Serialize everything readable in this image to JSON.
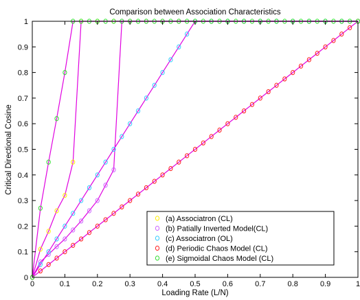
{
  "chart_data": {
    "type": "line",
    "title": "Comparison between Association Characteristics",
    "xlabel": "Loading Rate (L/N)",
    "ylabel": "Critical Directional Cosine",
    "xlim": [
      0,
      1
    ],
    "ylim": [
      0,
      1
    ],
    "x_ticks": [
      "0",
      "0.1",
      "0.2",
      "0.3",
      "0.4",
      "0.5",
      "0.6",
      "0.7",
      "0.8",
      "0.9",
      "1"
    ],
    "y_ticks": [
      "0",
      "0.1",
      "0.2",
      "0.3",
      "0.4",
      "0.5",
      "0.6",
      "0.7",
      "0.8",
      "0.9",
      "1"
    ],
    "grid": false,
    "legend_position": "bottom-right",
    "line_color": "#e000e0",
    "series": [
      {
        "name": "(a) Associatron (CL)",
        "color": "#ffee00",
        "x": [
          0,
          0.025,
          0.05,
          0.075,
          0.1,
          0.125,
          0.15,
          0.2,
          0.25,
          0.3,
          0.35,
          0.4,
          0.45,
          0.5,
          0.55,
          0.6,
          0.65,
          0.7,
          0.75,
          0.8,
          0.85,
          0.9,
          0.95,
          1.0
        ],
        "y": [
          0,
          0.11,
          0.18,
          0.26,
          0.32,
          0.45,
          1,
          1,
          1,
          1,
          1,
          1,
          1,
          1,
          1,
          1,
          1,
          1,
          1,
          1,
          1,
          1,
          1,
          1
        ]
      },
      {
        "name": "(b) Patially Inverted Model(CL)",
        "color": "#cc66ff",
        "x": [
          0,
          0.025,
          0.05,
          0.075,
          0.1,
          0.125,
          0.15,
          0.175,
          0.2,
          0.225,
          0.25,
          0.275,
          0.3,
          0.35,
          0.4,
          0.45,
          0.5,
          0.55,
          0.6,
          0.65,
          0.7,
          0.75,
          0.8,
          0.85,
          0.9,
          0.95,
          1.0
        ],
        "y": [
          0,
          0.06,
          0.09,
          0.12,
          0.15,
          0.185,
          0.22,
          0.26,
          0.3,
          0.36,
          0.42,
          1,
          1,
          1,
          1,
          1,
          1,
          1,
          1,
          1,
          1,
          1,
          1,
          1,
          1,
          1,
          1
        ]
      },
      {
        "name": "(c) Associatron (OL)",
        "color": "#33ccff",
        "x": [
          0,
          0.025,
          0.05,
          0.075,
          0.1,
          0.125,
          0.15,
          0.175,
          0.2,
          0.225,
          0.25,
          0.275,
          0.3,
          0.325,
          0.35,
          0.375,
          0.4,
          0.425,
          0.45,
          0.475,
          0.5,
          0.55,
          0.6,
          0.65,
          0.7,
          0.75,
          0.8,
          0.85,
          0.9,
          0.95,
          1.0
        ],
        "y": [
          0,
          0.05,
          0.1,
          0.15,
          0.2,
          0.25,
          0.3,
          0.35,
          0.4,
          0.45,
          0.5,
          0.55,
          0.6,
          0.65,
          0.7,
          0.75,
          0.8,
          0.85,
          0.9,
          0.95,
          1,
          1,
          1,
          1,
          1,
          1,
          1,
          1,
          1,
          1,
          1
        ]
      },
      {
        "name": "(d) Periodic Chaos Model (CL)",
        "color": "#ff2020",
        "x": [
          0,
          0.025,
          0.05,
          0.075,
          0.1,
          0.125,
          0.15,
          0.175,
          0.2,
          0.225,
          0.25,
          0.275,
          0.3,
          0.325,
          0.35,
          0.375,
          0.4,
          0.425,
          0.45,
          0.475,
          0.5,
          0.525,
          0.55,
          0.575,
          0.6,
          0.625,
          0.65,
          0.675,
          0.7,
          0.725,
          0.75,
          0.775,
          0.8,
          0.825,
          0.85,
          0.875,
          0.9,
          0.925,
          0.95,
          0.975,
          1.0
        ],
        "y": [
          0,
          0.025,
          0.05,
          0.075,
          0.1,
          0.125,
          0.15,
          0.175,
          0.2,
          0.225,
          0.25,
          0.275,
          0.3,
          0.325,
          0.35,
          0.375,
          0.4,
          0.425,
          0.45,
          0.475,
          0.5,
          0.525,
          0.55,
          0.575,
          0.6,
          0.625,
          0.65,
          0.675,
          0.7,
          0.725,
          0.75,
          0.775,
          0.8,
          0.825,
          0.85,
          0.875,
          0.9,
          0.925,
          0.95,
          0.975,
          1.0
        ]
      },
      {
        "name": "(e) Sigmoidal Chaos Model (CL)",
        "color": "#33dd33",
        "x": [
          0,
          0.025,
          0.05,
          0.075,
          0.1,
          0.125,
          0.15,
          0.175,
          0.2,
          0.225,
          0.25,
          0.275,
          0.3,
          0.325,
          0.35,
          0.375,
          0.4,
          0.425,
          0.45,
          0.475,
          0.5,
          0.525,
          0.55,
          0.575,
          0.6,
          0.625,
          0.65,
          0.675,
          0.7,
          0.725,
          0.75,
          0.775,
          0.8,
          0.825,
          0.85,
          0.875,
          0.9,
          0.925,
          0.95,
          0.975,
          1.0
        ],
        "y": [
          0,
          0.27,
          0.45,
          0.62,
          0.8,
          1,
          1,
          1,
          1,
          1,
          1,
          1,
          1,
          1,
          1,
          1,
          1,
          1,
          1,
          1,
          1,
          1,
          1,
          1,
          1,
          1,
          1,
          1,
          1,
          1,
          1,
          1,
          1,
          1,
          1,
          1,
          1,
          1,
          1,
          1,
          1
        ]
      }
    ]
  }
}
